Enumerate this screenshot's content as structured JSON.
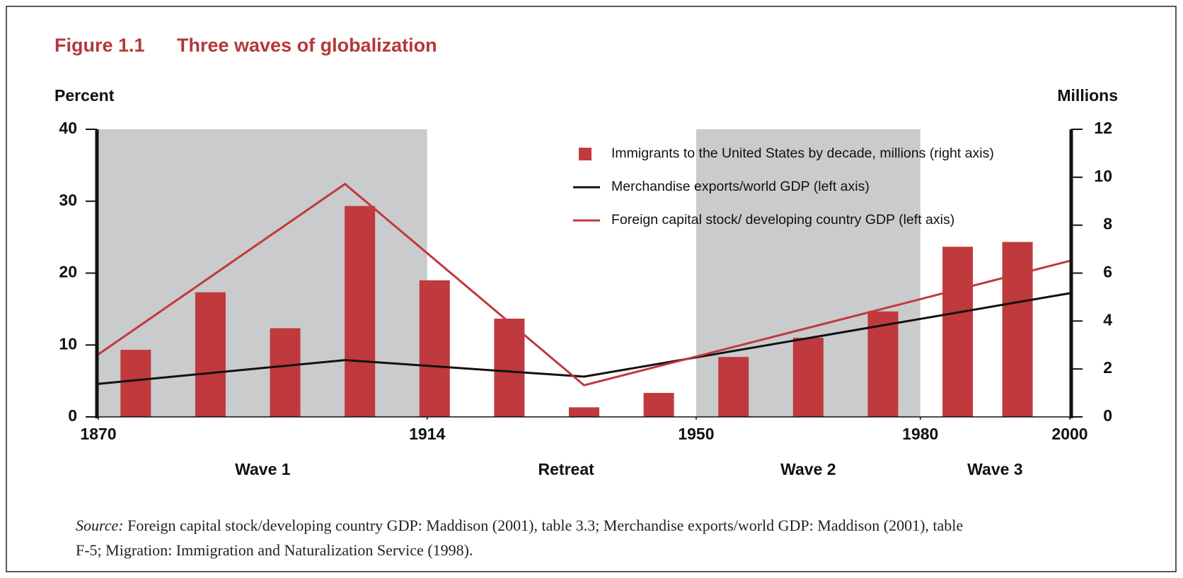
{
  "chart_data": {
    "type": "combo",
    "title_number": "Figure 1.1",
    "title": "Three waves of globalization",
    "ylabel": "Percent",
    "y2label": "Millions",
    "xlim": [
      1870,
      2000
    ],
    "xticks": [
      1870,
      1914,
      1950,
      1980,
      2000
    ],
    "ylim": [
      0,
      40
    ],
    "yticks": [
      0,
      10,
      20,
      30,
      40
    ],
    "y2lim": [
      0,
      12
    ],
    "y2ticks": [
      0,
      2,
      4,
      6,
      8,
      10,
      12
    ],
    "shaded_spans": [
      [
        1870,
        1914
      ],
      [
        1950,
        1980
      ]
    ],
    "shade_color": "#c9cbcc",
    "annotations": [
      {
        "text": "Wave 1",
        "x": 1892
      },
      {
        "text": "Retreat",
        "x": 1932.6
      },
      {
        "text": "Wave 2",
        "x": 1965
      },
      {
        "text": "Wave 3",
        "x": 1990
      }
    ],
    "series": [
      {
        "name": "Immigrants to the United States by decade, millions (right axis)",
        "type": "bar",
        "axis": "y2",
        "color": "#c0393c",
        "x": [
          1875,
          1885,
          1895,
          1905,
          1915,
          1925,
          1935,
          1945,
          1955,
          1965,
          1975,
          1985,
          1993
        ],
        "values": [
          2.8,
          5.2,
          3.7,
          8.8,
          5.7,
          4.1,
          0.4,
          1.0,
          2.5,
          3.3,
          4.4,
          7.1,
          7.3
        ]
      },
      {
        "name": "Merchandise exports/world GDP (left axis)",
        "type": "line",
        "color": "#111111",
        "x": [
          1870,
          1903,
          1935,
          2000
        ],
        "values": [
          4.6,
          7.9,
          5.6,
          17.2
        ]
      },
      {
        "name": "Foreign capital stock/ developing country GDP  (left axis)",
        "type": "line",
        "color": "#c0393c",
        "x": [
          1870,
          1903,
          1935,
          2000
        ],
        "values": [
          8.7,
          32.4,
          4.4,
          21.7
        ]
      }
    ],
    "source_label": "Source:",
    "source_lines": [
      "Foreign capital stock/developing country GDP: Maddison (2001), table 3.3; Merchandise exports/world GDP: Maddison (2001), table",
      "F-5; Migration: Immigration and Naturalization Service (1998)."
    ]
  }
}
